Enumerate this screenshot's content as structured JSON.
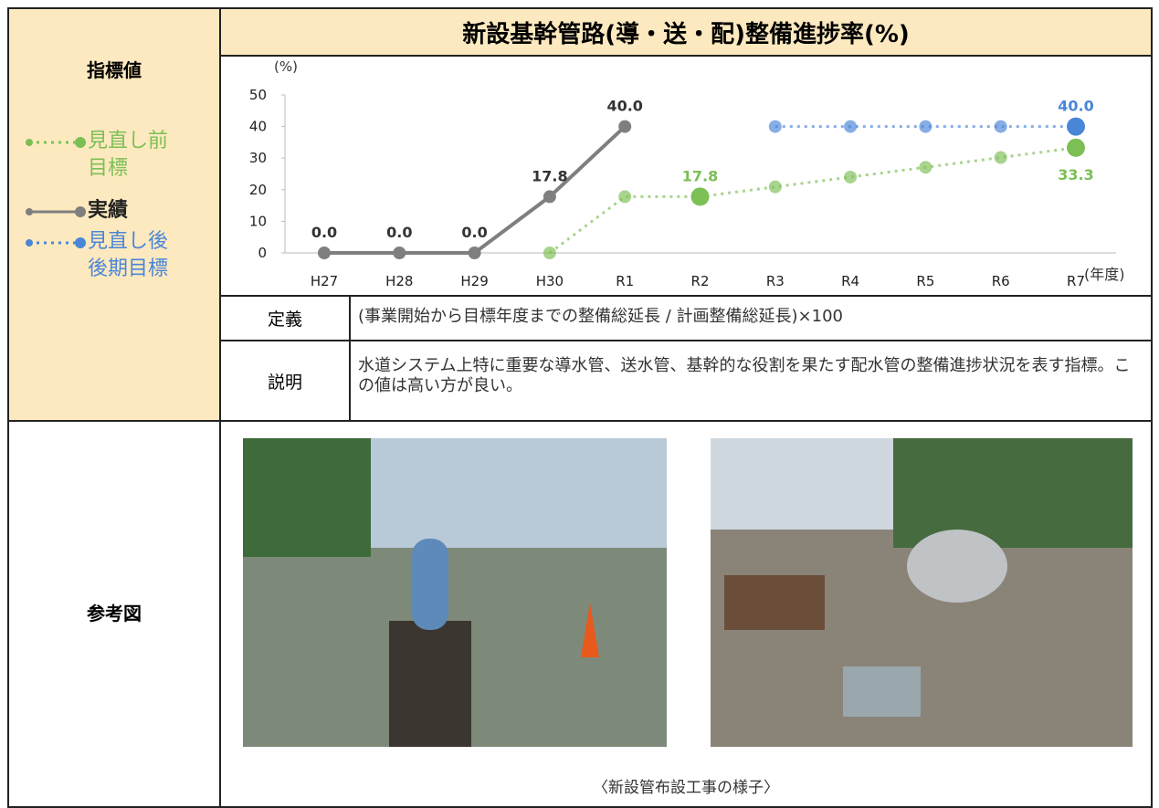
{
  "indicator_label": "指標値",
  "definition": {
    "label": "定義",
    "text": "(事業開始から目標年度までの整備総延長 / 計画整備総延長)×100"
  },
  "description": {
    "label": "説明",
    "text": "水道システム上特に重要な導水管、送水管、基幹的な役割を果たす配水管の整備進捗状況を表す指標。この値は高い方が良い。"
  },
  "reference": {
    "label": "参考図",
    "caption": "〈新設管布設工事の様子〉"
  },
  "chart_data": {
    "type": "line",
    "title": "新設基幹管路(導・送・配)整備進捗率(%)",
    "y_label": "(%)",
    "x_label": "(年度)",
    "categories": [
      "H27",
      "H28",
      "H29",
      "H30",
      "R1",
      "R2",
      "R3",
      "R4",
      "R5",
      "R6",
      "R7"
    ],
    "ylim": [
      0,
      50
    ],
    "yticks": [
      0,
      10,
      20,
      30,
      40,
      50
    ],
    "series": [
      {
        "name": "見直し前目標",
        "color": "#7cbf55",
        "style": "dotted",
        "values": [
          null,
          null,
          null,
          0,
          17.8,
          17.8,
          20.9,
          24.0,
          27.1,
          30.2,
          33.3
        ],
        "value_labels": [
          null,
          null,
          null,
          null,
          null,
          "17.8",
          null,
          null,
          null,
          null,
          "33.3"
        ]
      },
      {
        "name": "実績",
        "color": "#7f7f7f",
        "style": "solid",
        "values": [
          0,
          0,
          0,
          17.8,
          40.0,
          null,
          null,
          null,
          null,
          null,
          null
        ],
        "value_labels": [
          "0.0",
          "0.0",
          "0.0",
          "17.8",
          "40.0",
          null,
          null,
          null,
          null,
          null,
          null
        ]
      },
      {
        "name": "見直し後後期目標",
        "color": "#4a86d8",
        "style": "dotted",
        "values": [
          null,
          null,
          null,
          null,
          null,
          null,
          40,
          40,
          40,
          40,
          40
        ],
        "value_labels": [
          null,
          null,
          null,
          null,
          null,
          null,
          null,
          null,
          null,
          null,
          "40.0"
        ]
      }
    ]
  }
}
